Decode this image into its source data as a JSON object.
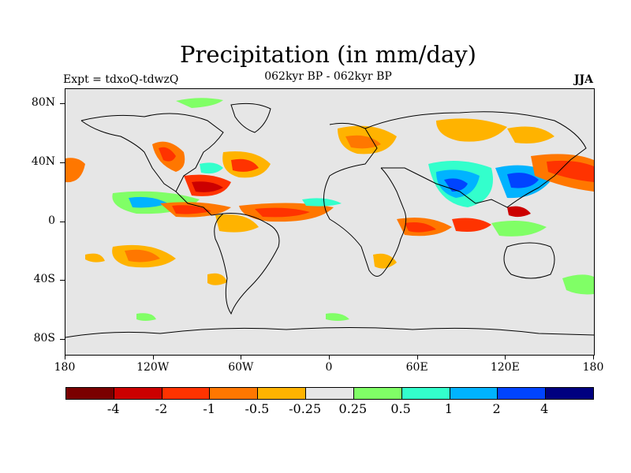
{
  "title": "Precipitation (in mm/day)",
  "subtitle": "062kyr BP - 062kyr BP",
  "left_label": "Expt = tdxoQ-tdwzQ",
  "right_label": "JJA",
  "lat_ticks": [
    {
      "label": "80N",
      "lat": 80
    },
    {
      "label": "40N",
      "lat": 40
    },
    {
      "label": "0",
      "lat": 0
    },
    {
      "label": "40S",
      "lat": -40
    },
    {
      "label": "80S",
      "lat": -80
    }
  ],
  "lon_ticks": [
    {
      "label": "180",
      "lon": -180
    },
    {
      "label": "120W",
      "lon": -120
    },
    {
      "label": "60W",
      "lon": -60
    },
    {
      "label": "0",
      "lon": 0
    },
    {
      "label": "60E",
      "lon": 60
    },
    {
      "label": "120E",
      "lon": 120
    },
    {
      "label": "180",
      "lon": 180
    }
  ],
  "colorbar": {
    "colors": [
      "#7a0000",
      "#cc0000",
      "#ff3300",
      "#ff7700",
      "#ffb300",
      "#e6e6e6",
      "#80ff66",
      "#33ffcc",
      "#00b3ff",
      "#0044ff",
      "#000080"
    ],
    "labels": [
      "-4",
      "-2",
      "-1",
      "-0.5",
      "-0.25",
      "0.25",
      "0.5",
      "1",
      "2",
      "4"
    ]
  },
  "map": {
    "ocean_color": "#e6e6e6",
    "coast_color": "#000000"
  }
}
